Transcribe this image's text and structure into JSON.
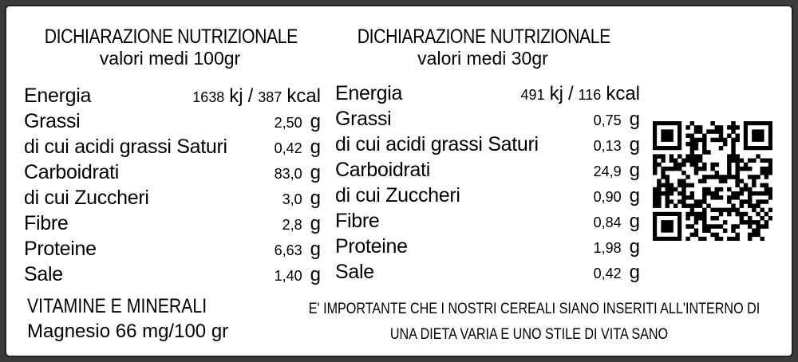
{
  "panels": [
    {
      "title": "DICHIARAZIONE NUTRIZIONALE",
      "subtitle": "valori medi 100gr",
      "energy": {
        "label": "Energia",
        "kj": "1638",
        "kj_unit": "kj",
        "separator": "/",
        "kcal": "387",
        "kcal_unit": "kcal"
      },
      "rows": [
        {
          "label": "Grassi",
          "value": "2,50",
          "unit": "g"
        },
        {
          "label": "di cui acidi grassi Saturi",
          "value": "0,42",
          "unit": "g"
        },
        {
          "label": "Carboidrati",
          "value": "83,0",
          "unit": "g"
        },
        {
          "label": "di cui Zuccheri",
          "value": "3,0",
          "unit": "g"
        },
        {
          "label": "Fibre",
          "value": "2,8",
          "unit": "g"
        },
        {
          "label": "Proteine",
          "value": "6,63",
          "unit": "g"
        },
        {
          "label": "Sale",
          "value": "1,40",
          "unit": "g"
        }
      ]
    },
    {
      "title": "DICHIARAZIONE NUTRIZIONALE",
      "subtitle": "valori medi 30gr",
      "energy": {
        "label": "Energia",
        "kj": "491",
        "kj_unit": "kj",
        "separator": "/",
        "kcal": "116",
        "kcal_unit": "kcal"
      },
      "rows": [
        {
          "label": "Grassi",
          "value": "0,75",
          "unit": "g"
        },
        {
          "label": "di cui acidi grassi Saturi",
          "value": "0,13",
          "unit": "g"
        },
        {
          "label": "Carboidrati",
          "value": "24,9",
          "unit": "g"
        },
        {
          "label": "di cui Zuccheri",
          "value": "0,90",
          "unit": "g"
        },
        {
          "label": "Fibre",
          "value": "0,84",
          "unit": "g"
        },
        {
          "label": "Proteine",
          "value": "1,98",
          "unit": "g"
        },
        {
          "label": "Sale",
          "value": "0,42",
          "unit": "g"
        }
      ]
    }
  ],
  "vitamins": {
    "title": "VITAMINE E MINERALI",
    "text": "Magnesio 66 mg/100 gr"
  },
  "note": {
    "lines": [
      "E' IMPORTANTE CHE I NOSTRI CEREALI SIANO INSERITI ALL'INTERNO DI",
      "UNA DIETA VARIA E UNO STILE DI VITA SANO"
    ]
  }
}
